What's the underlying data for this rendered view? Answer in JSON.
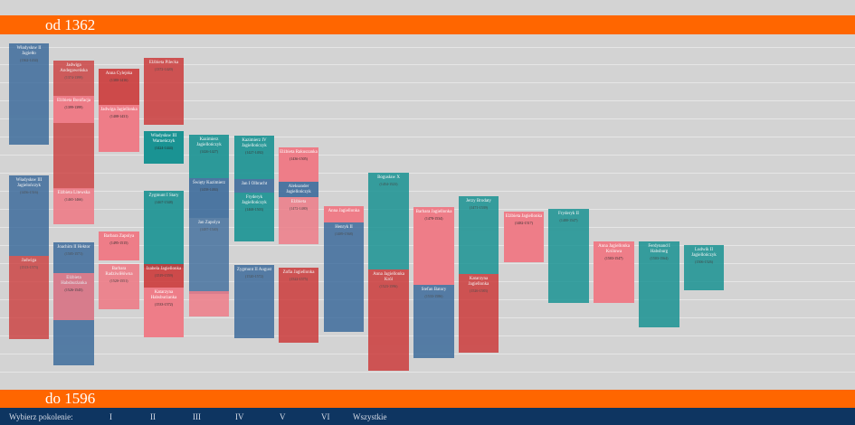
{
  "header": {
    "start_label": "od 1362"
  },
  "footer": {
    "end_label": "do 1596",
    "prompt": "Wybierz pokolenie:",
    "generations": [
      "I",
      "II",
      "III",
      "IV",
      "V",
      "VI",
      "Wszystkie"
    ]
  },
  "persons": [
    {
      "name": "Władysław II Jagiełło",
      "years": "(1362-1434)"
    },
    {
      "name": "Władysław III Jagielończyk",
      "years": "(1456-1516)"
    },
    {
      "name": "Jadwiga",
      "years": "(1513-1573)"
    },
    {
      "name": "Jadwiga Andegaweńska",
      "years": "(1374-1399)"
    },
    {
      "name": "Elżbieta Bonifacja",
      "years": "(1399-1399)"
    },
    {
      "name": "Elżbieta Litewska",
      "years": "(1465-1466)"
    },
    {
      "name": "Joachim II Hektor",
      "years": "(1505-1571)"
    },
    {
      "name": "Elżbieta Habsburżanka",
      "years": "(1526-1545)"
    },
    {
      "name": "Anna Cylejska",
      "years": "(1380-1416)"
    },
    {
      "name": "Jadwiga Jagiellonka",
      "years": "(1408-1431)"
    },
    {
      "name": "Barbara Zapolya",
      "years": "(1495-1515)"
    },
    {
      "name": "Barbara Radziwiłłówna",
      "years": "(1520-1551)"
    },
    {
      "name": "Elżbieta Pilecka",
      "years": "(1372-1420)"
    },
    {
      "name": "Władysław III Warneńczyk",
      "years": "(1424-1444)"
    },
    {
      "name": "Zygmunt I Stary",
      "years": "(1467-1548)"
    },
    {
      "name": "Izabela Jagiellonka",
      "years": "(1519-1559)"
    },
    {
      "name": "Katarzyna Habsburżanka",
      "years": "(1533-1572)"
    },
    {
      "name": "Kazimierz Jagiellończyk",
      "years": "(1426-1427)"
    },
    {
      "name": "Święty Kazimierz",
      "years": "(1458-1484)"
    },
    {
      "name": "Jan Zapolya",
      "years": "(1487-1540)"
    },
    {
      "name": "Zygmunt II August",
      "years": "(1520-1572)"
    },
    {
      "name": "Kazimierz IV Jagiellończyk",
      "years": "(1427-1492)"
    },
    {
      "name": "Jan I Olbracht",
      "years": "(1459-1501)"
    },
    {
      "name": "Fryderyk Jagiellończyk",
      "years": "(1468-1503)"
    },
    {
      "name": "Elżbieta Rakuszanka",
      "years": "(1436-1505)"
    },
    {
      "name": "Aleksander Jagiellończyk",
      "years": "(1461-1506)"
    },
    {
      "name": "Elżbieta",
      "years": "(1472-1480)"
    },
    {
      "name": "Zofia Jagiellonka",
      "years": "(1522-1575)"
    },
    {
      "name": "Anna Jagiellonka",
      "years": "(1476-1503)"
    },
    {
      "name": "Henryk II",
      "years": "(1489-1568)"
    },
    {
      "name": "Bogusław X",
      "years": "(1454-1523)"
    },
    {
      "name": "Anna Jagiellonka Król",
      "years": "(1523-1596)"
    },
    {
      "name": "Barbara Jagiellonka",
      "years": "(1478-1534)"
    },
    {
      "name": "Stefan Batory",
      "years": "(1533-1586)"
    },
    {
      "name": "Jerzy Brodaty",
      "years": "(1471-1539)"
    },
    {
      "name": "Katarzyna Jagiellonka",
      "years": "(1526-1583)"
    },
    {
      "name": "Elżbieta Jagiellonka",
      "years": "(1482-1517)"
    },
    {
      "name": "Fryderyk II",
      "years": "(1480-1547)"
    },
    {
      "name": "Anna Jagiellonka Królowa",
      "years": "(1503-1547)"
    },
    {
      "name": "Ferdynand I Habsburg",
      "years": "(1503-1564)"
    },
    {
      "name": "Ludwik II Jagiellończyk",
      "years": "(1506-1526)"
    }
  ],
  "colors": {
    "orange": "#ff6600",
    "navy": "#356699",
    "red": "#cc3333",
    "pink": "#ee7d88",
    "teal": "#1a9393",
    "footer": "#0e3561"
  }
}
